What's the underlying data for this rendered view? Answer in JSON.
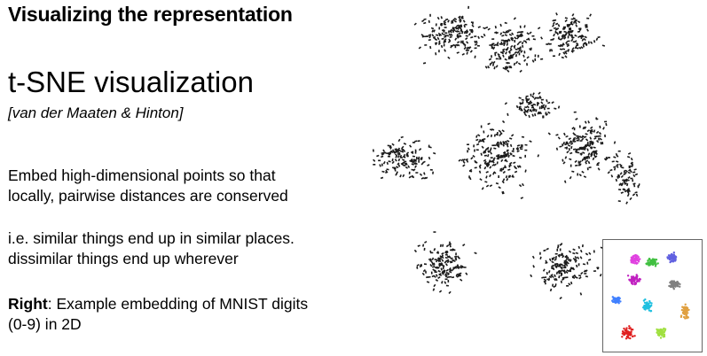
{
  "slide": {
    "title": "Visualizing the representation",
    "subtitle": "t-SNE visualization",
    "citation": "[van der Maaten & Hinton]",
    "paragraphs": [
      {
        "lines": [
          "Embed high-dimensional points so that",
          "locally, pairwise distances are conserved"
        ]
      },
      {
        "lines": [
          "i.e. similar things end up in similar places.",
          "dissimilar things end up wherever"
        ]
      },
      {
        "bold": "Right",
        "lines": [
          ": Example embedding of MNIST digits",
          "(0-9) in 2D"
        ]
      }
    ]
  },
  "figure": {
    "main_color": "#1a1a1a",
    "inset_colors": [
      "#e040e0",
      "#40c040",
      "#6060e0",
      "#e02020",
      "#20c0e0",
      "#4080ff",
      "#e0a040",
      "#a0e040",
      "#c020c0",
      "#808080"
    ]
  }
}
